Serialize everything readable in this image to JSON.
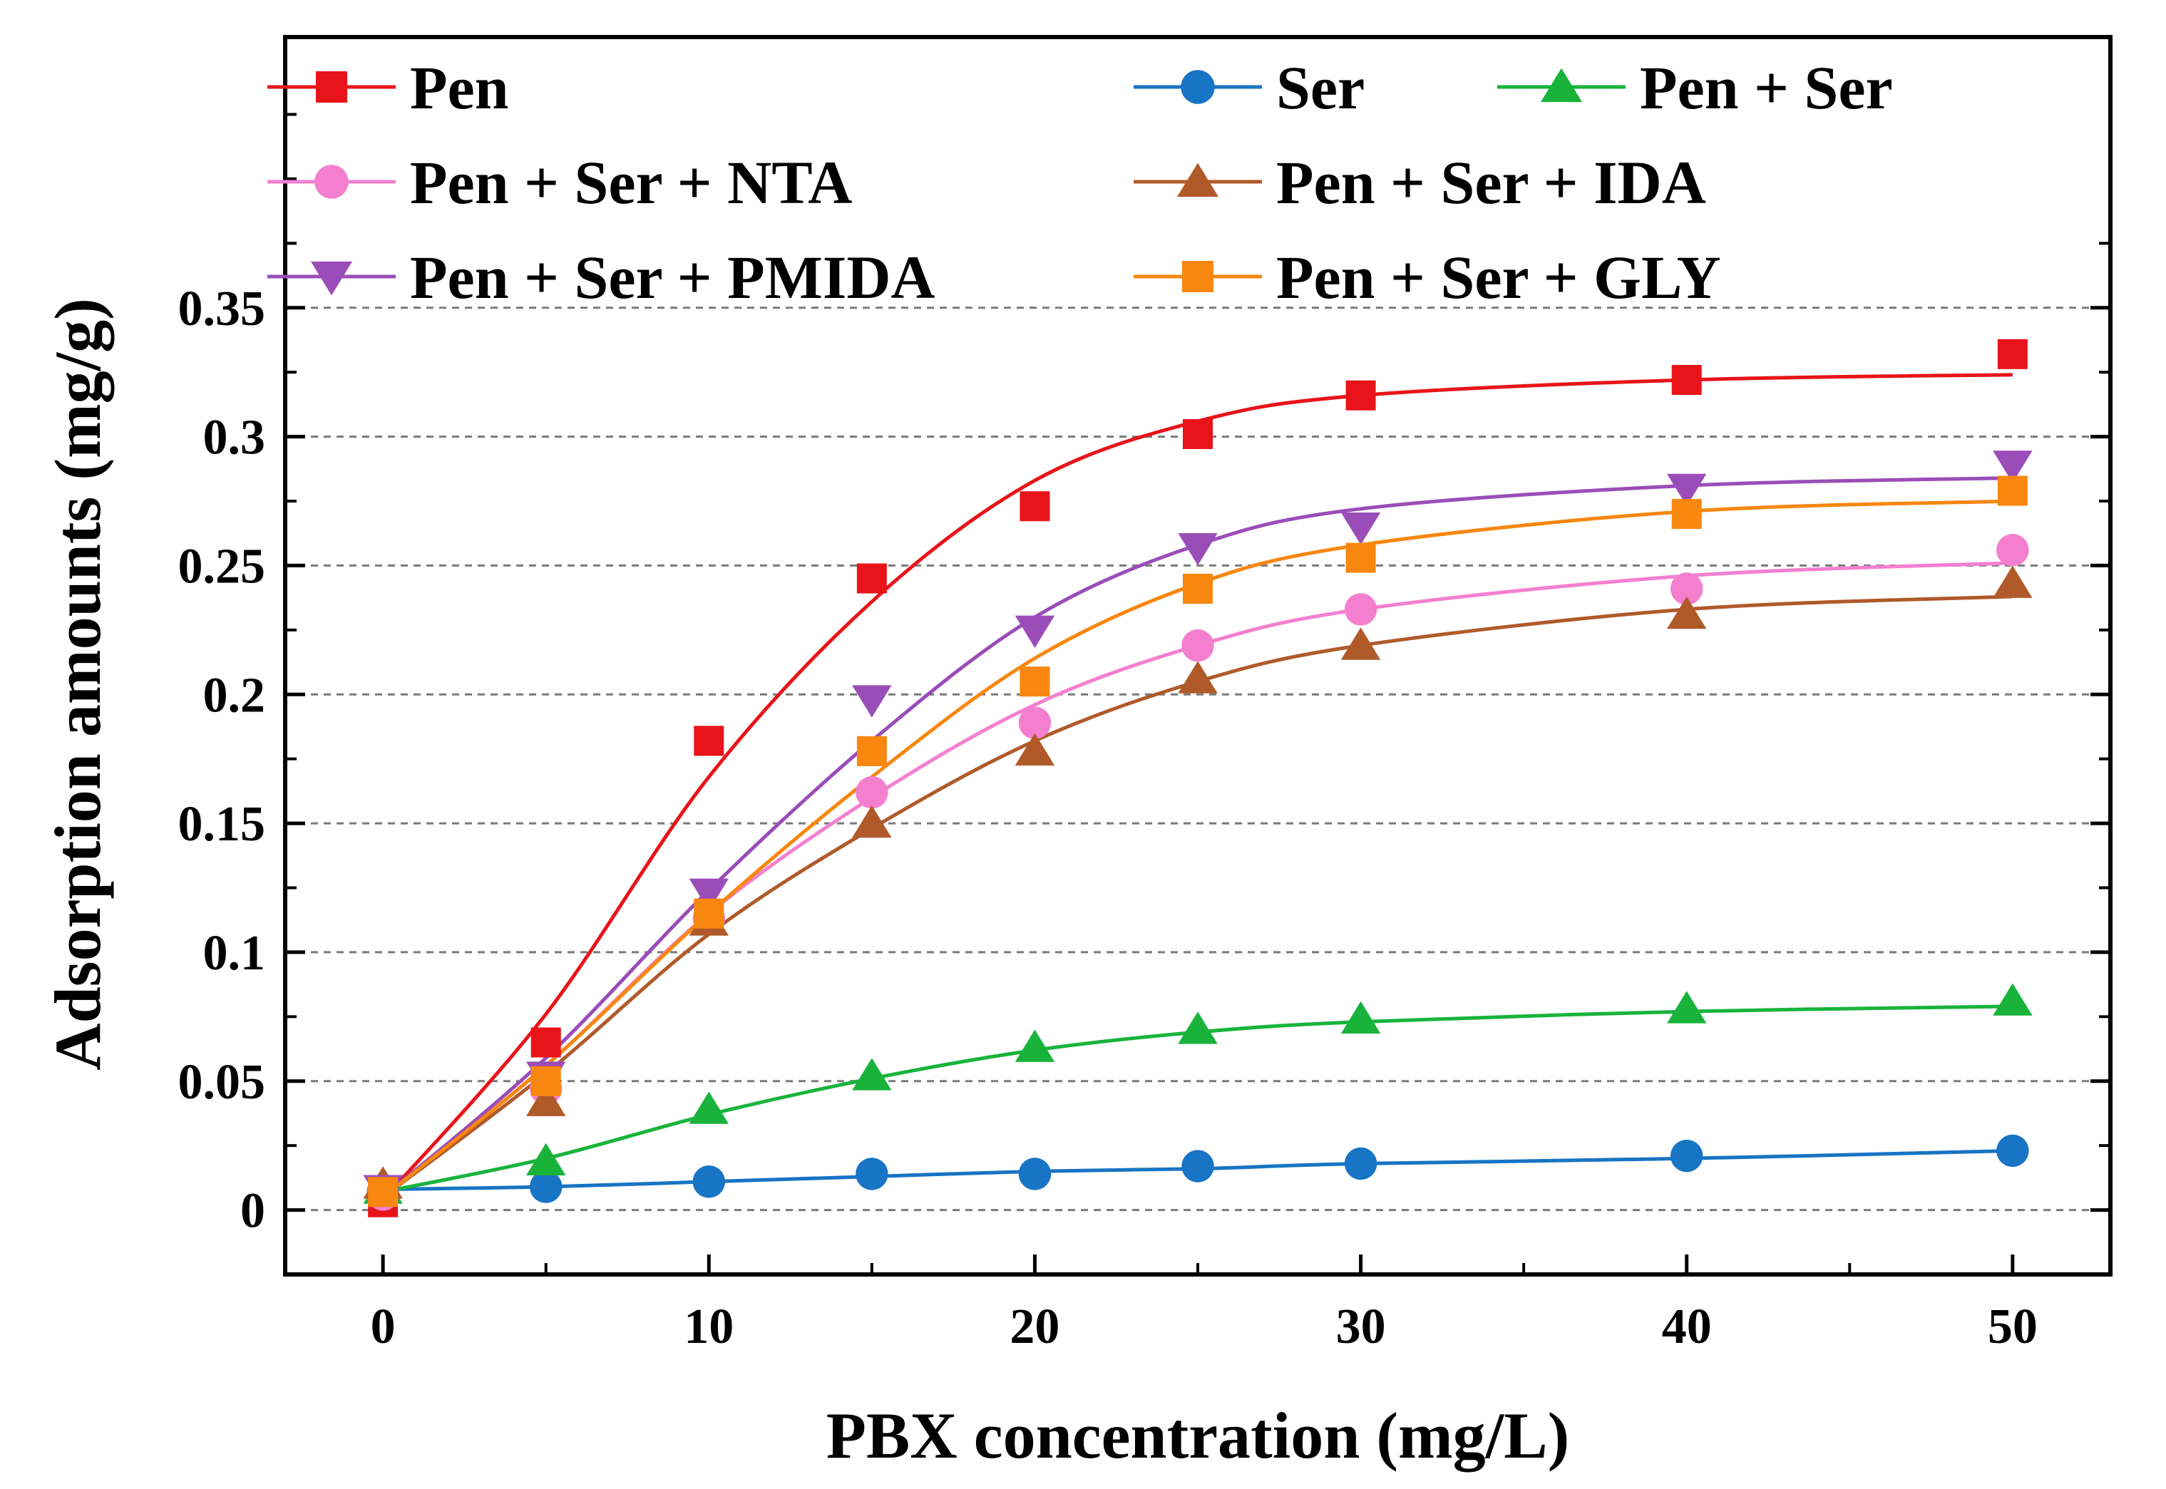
{
  "chart_data": {
    "type": "scatter",
    "title": "",
    "xlabel": "PBX concentration (mg/L)",
    "ylabel": "Adsorption amounts (mg/g)",
    "xlim": [
      -3,
      53
    ],
    "ylim": [
      -0.025,
      0.455
    ],
    "xticks": [
      0,
      10,
      20,
      30,
      40,
      50
    ],
    "xtick_labels": [
      "0",
      "10",
      "20",
      "30",
      "40",
      "50"
    ],
    "yticks": [
      0,
      0.05,
      0.1,
      0.15,
      0.2,
      0.25,
      0.3,
      0.35
    ],
    "ytick_labels": [
      "0",
      "0.05",
      "0.1",
      "0.15",
      "0.2",
      "0.25",
      "0.3",
      "0.35"
    ],
    "grid": "horizontal dashed",
    "legend_position": "top",
    "x": [
      0,
      5,
      10,
      15,
      20,
      25,
      30,
      40,
      50
    ],
    "series": [
      {
        "name": "Pen",
        "color": "#e8141a",
        "marker": "square",
        "values": [
          0.003,
          0.065,
          0.182,
          0.245,
          0.273,
          0.301,
          0.316,
          0.322,
          0.332
        ],
        "fit": [
          0.004,
          0.076,
          0.168,
          0.236,
          0.283,
          0.306,
          0.316,
          0.322,
          0.324
        ]
      },
      {
        "name": "Ser",
        "color": "#1874c4",
        "marker": "circle",
        "values": [
          0.007,
          0.009,
          0.011,
          0.014,
          0.014,
          0.017,
          0.018,
          0.021,
          0.023
        ],
        "fit": [
          0.008,
          0.009,
          0.011,
          0.013,
          0.015,
          0.016,
          0.018,
          0.02,
          0.023
        ]
      },
      {
        "name": "Pen + Ser",
        "color": "#19b33c",
        "marker": "triangle-up",
        "values": [
          0.008,
          0.019,
          0.039,
          0.052,
          0.063,
          0.07,
          0.074,
          0.078,
          0.081
        ],
        "fit": [
          0.007,
          0.02,
          0.037,
          0.051,
          0.062,
          0.069,
          0.073,
          0.077,
          0.079
        ]
      },
      {
        "name": "Pen + Ser + NTA",
        "color": "#f47fcf",
        "marker": "circle",
        "values": [
          0.006,
          0.047,
          0.113,
          0.162,
          0.189,
          0.219,
          0.233,
          0.241,
          0.256
        ],
        "fit": [
          0.005,
          0.056,
          0.115,
          0.16,
          0.196,
          0.219,
          0.233,
          0.246,
          0.251
        ]
      },
      {
        "name": "Pen + Ser + IDA",
        "color": "#b05a2a",
        "marker": "triangle-up",
        "values": [
          0.01,
          0.042,
          0.112,
          0.15,
          0.178,
          0.206,
          0.219,
          0.231,
          0.243
        ],
        "fit": [
          0.005,
          0.053,
          0.107,
          0.148,
          0.182,
          0.205,
          0.219,
          0.233,
          0.238
        ]
      },
      {
        "name": "Pen + Ser + PMIDA",
        "color": "#9a4db8",
        "marker": "triangle-down",
        "values": [
          0.008,
          0.052,
          0.123,
          0.198,
          0.225,
          0.257,
          0.265,
          0.28,
          0.289
        ],
        "fit": [
          0.005,
          0.059,
          0.124,
          0.182,
          0.23,
          0.258,
          0.272,
          0.281,
          0.284
        ]
      },
      {
        "name": "Pen + Ser + GLY",
        "color": "#f7870f",
        "marker": "square",
        "values": [
          0.007,
          0.05,
          0.115,
          0.178,
          0.205,
          0.241,
          0.253,
          0.27,
          0.279
        ],
        "fit": [
          0.005,
          0.056,
          0.115,
          0.168,
          0.214,
          0.243,
          0.258,
          0.271,
          0.275
        ]
      }
    ]
  }
}
